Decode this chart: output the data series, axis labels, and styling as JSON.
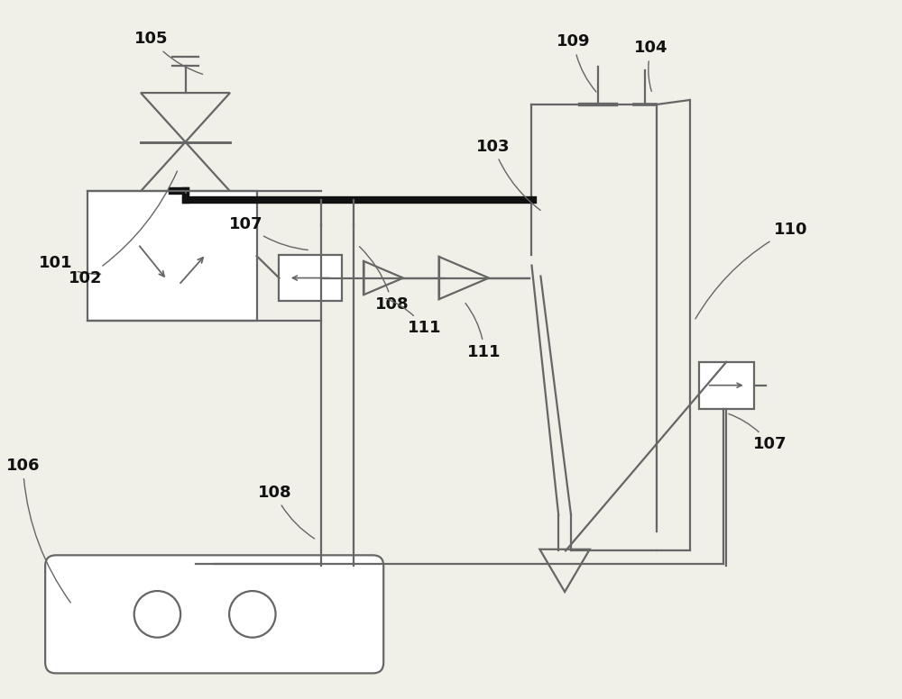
{
  "bg_color": "#f0efe8",
  "line_color": "#666666",
  "thick_line_color": "#111111",
  "label_color": "#111111",
  "font_size": 13,
  "lw": 1.6,
  "tlw": 6.0
}
